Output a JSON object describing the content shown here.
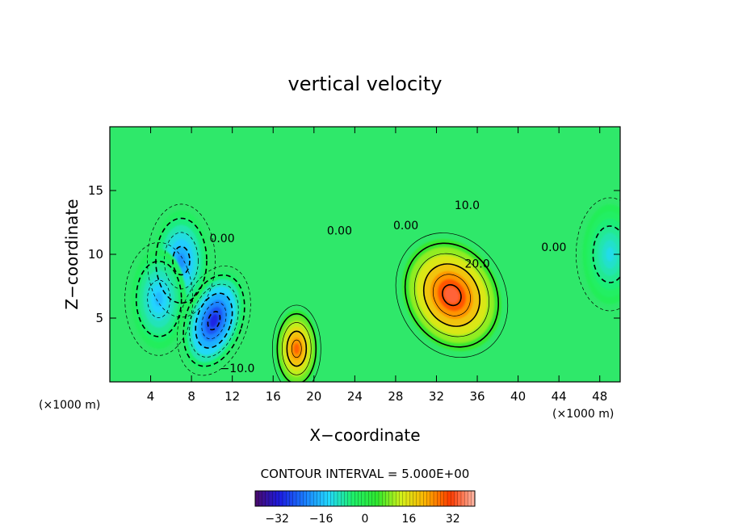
{
  "chart_data": {
    "type": "heatmap",
    "title": "vertical velocity",
    "xlabel": "X−coordinate",
    "ylabel": "Z−coordinate",
    "x_unit": "(×1000 m)",
    "xlim": [
      0,
      50
    ],
    "ylim": [
      0,
      20
    ],
    "x_ticks": [
      4,
      8,
      12,
      16,
      20,
      24,
      28,
      32,
      36,
      40,
      44,
      48
    ],
    "y_ticks": [
      5,
      10,
      15
    ],
    "contour_interval_label": "CONTOUR INTERVAL = 5.000E+00",
    "colorbar": {
      "range": [
        -40,
        40
      ],
      "ticks": [
        -32,
        -16,
        0,
        16,
        32
      ],
      "tick_labels": [
        "−32",
        "−16",
        "0",
        "16",
        "32"
      ]
    },
    "contour_labels": [
      {
        "text": "10.0",
        "x": 35.0,
        "z": 13.8
      },
      {
        "text": "20.0",
        "x": 36.0,
        "z": 9.2
      },
      {
        "text": "0.00",
        "x": 11.0,
        "z": 11.2
      },
      {
        "text": "0.00",
        "x": 22.5,
        "z": 11.8
      },
      {
        "text": "0.00",
        "x": 29.0,
        "z": 12.2
      },
      {
        "text": "0.00",
        "x": 43.5,
        "z": 10.5
      },
      {
        "text": "−10.0",
        "x": 12.5,
        "z": 1.0
      }
    ],
    "features": [
      {
        "kind": "updraft",
        "x": 33.5,
        "z": 6.8,
        "peak": 34
      },
      {
        "kind": "updraft",
        "x": 18.3,
        "z": 2.6,
        "peak": 28
      },
      {
        "kind": "downdraft",
        "x": 10.2,
        "z": 4.8,
        "peak": -30
      },
      {
        "kind": "downdraft",
        "x": 7.0,
        "z": 9.5,
        "peak": -20
      },
      {
        "kind": "downdraft",
        "x": 4.8,
        "z": 6.5,
        "peak": -16
      },
      {
        "kind": "downdraft",
        "x": 49.0,
        "z": 10.0,
        "peak": -12
      }
    ]
  },
  "colors": {
    "background": "#ffffff",
    "field_zero": "#2fe86a",
    "colorbar_stops": [
      "#4a0a6a",
      "#1c1ce0",
      "#1a7bff",
      "#22d8ff",
      "#1ff06a",
      "#2fe82f",
      "#d4f01a",
      "#ffb000",
      "#ff3a00",
      "#ffb9a8"
    ]
  }
}
